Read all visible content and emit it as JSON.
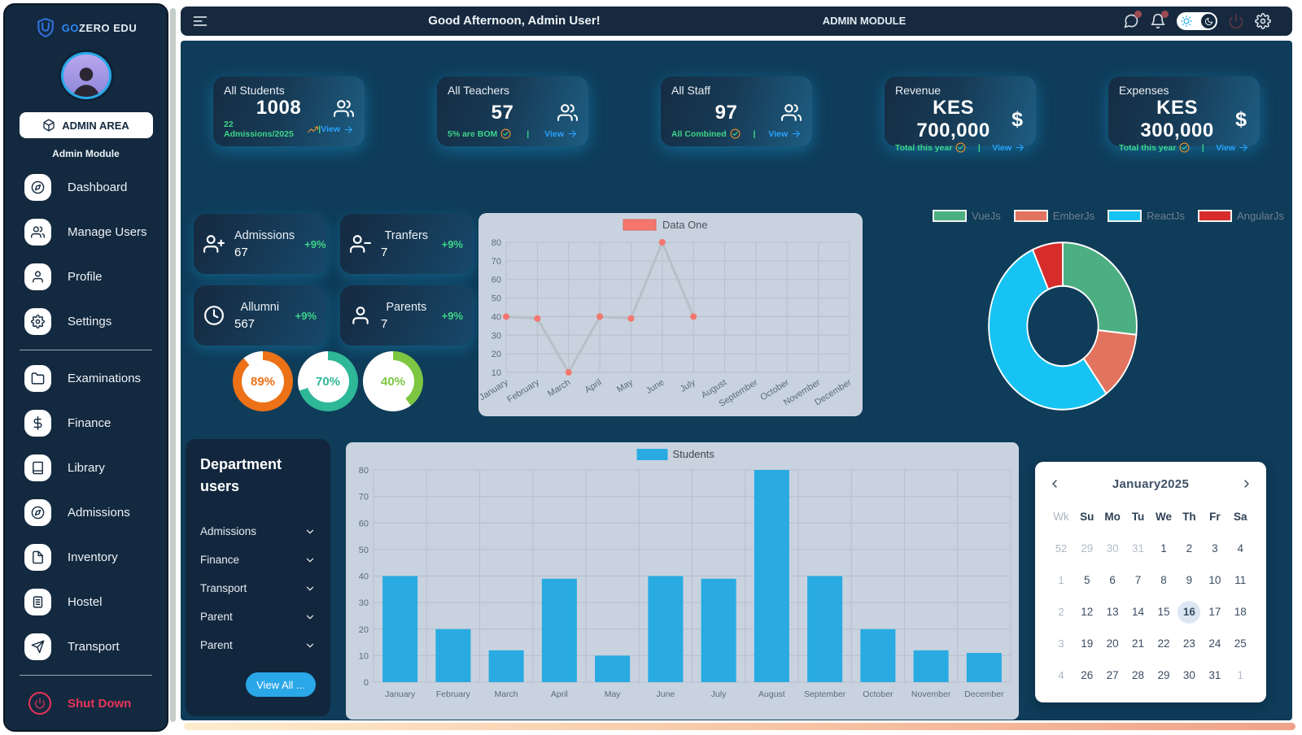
{
  "brand": {
    "go": "GO",
    "rest": "ZERO EDU",
    "logo_icon": "shield-u-icon"
  },
  "sidebar": {
    "admin_area_label": "ADMIN AREA",
    "admin_area_icon": "box-icon",
    "section_label": "Admin Module",
    "items": [
      {
        "label": "Dashboard",
        "icon": "compass"
      },
      {
        "label": "Manage Users",
        "icon": "users"
      },
      {
        "label": "Profile",
        "icon": "user"
      },
      {
        "label": "Settings",
        "icon": "gear"
      },
      {
        "label": "Examinations",
        "icon": "folder"
      },
      {
        "label": "Finance",
        "icon": "dollar"
      },
      {
        "label": "Library",
        "icon": "book"
      },
      {
        "label": "Admissions",
        "icon": "compass"
      },
      {
        "label": "Inventory",
        "icon": "file"
      },
      {
        "label": "Hostel",
        "icon": "building"
      },
      {
        "label": "Transport",
        "icon": "send"
      }
    ],
    "dividers_after": [
      3,
      10
    ],
    "shutdown_label": "Shut Down",
    "shutdown_icon": "power"
  },
  "topbar": {
    "menu_icon": "menu",
    "greeting": "Good Afternoon, Admin User!",
    "module_label": "ADMIN MODULE",
    "icons": [
      {
        "name": "chat",
        "badge": true
      },
      {
        "name": "bell",
        "badge": true
      },
      {
        "name": "theme-toggle",
        "badge": false
      },
      {
        "name": "power",
        "badge": false,
        "dim": true
      },
      {
        "name": "gear",
        "badge": false
      }
    ]
  },
  "ui": {
    "footer_divider": "|"
  },
  "stat_cards": [
    {
      "title": "All Students",
      "value": "1008",
      "icon": "users",
      "subtext": "22 Admissions/2025",
      "sub_icon": "trend-up",
      "link_label": "View"
    },
    {
      "title": "All Teachers",
      "value": "57",
      "icon": "users",
      "subtext": "5% are BOM",
      "sub_icon": "check-badge",
      "link_label": "View"
    },
    {
      "title": "All Staff",
      "value": "97",
      "icon": "users",
      "subtext": "All Combined",
      "sub_icon": "check-badge",
      "link_label": "View"
    },
    {
      "title": "Revenue",
      "value": "KES 700,000",
      "icon": "dollar-char",
      "icon_char": "$",
      "subtext": "Total this year",
      "sub_icon": "check-badge",
      "link_label": "View"
    },
    {
      "title": "Expenses",
      "value": "KES 300,000",
      "icon": "dollar-char",
      "icon_char": "$",
      "subtext": "Total this year",
      "sub_icon": "check-badge",
      "link_label": "View"
    }
  ],
  "mini_cards": [
    {
      "label": "Admissions",
      "value": "67",
      "delta": "+9%",
      "icon": "user-plus"
    },
    {
      "label": "Tranfers",
      "value": "7",
      "delta": "+9%",
      "icon": "user-minus"
    },
    {
      "label": "Allumni",
      "value": "567",
      "delta": "+9%",
      "icon": "clock"
    },
    {
      "label": "Parents",
      "value": "7",
      "delta": "+9%",
      "icon": "user"
    }
  ],
  "progress_rings": [
    {
      "label": "89%",
      "percent": 89,
      "color": "#ed7117"
    },
    {
      "label": "70%",
      "percent": 70,
      "color": "#2eb897"
    },
    {
      "label": "40%",
      "percent": 40,
      "color": "#7dc642"
    }
  ],
  "chart_data": [
    {
      "id": "monthly-line",
      "type": "line",
      "title": "",
      "categories": [
        "January",
        "February",
        "March",
        "April",
        "May",
        "June",
        "July",
        "August",
        "September",
        "October",
        "November",
        "December"
      ],
      "series": [
        {
          "name": "Data One",
          "color": "#f4766d",
          "values": [
            40,
            39,
            10,
            40,
            39,
            80,
            40,
            null,
            null,
            null,
            null,
            null
          ]
        }
      ],
      "line_color": "#b9bfc7",
      "ylim": [
        10,
        80
      ],
      "ytick_step": 10,
      "grid": true,
      "legend_position": "top",
      "background": "#c9d3df"
    },
    {
      "id": "frameworks-donut",
      "type": "pie",
      "labels": [
        "VueJs",
        "EmberJs",
        "ReactJs",
        "AngularJs"
      ],
      "values": [
        40,
        20,
        80,
        10
      ],
      "colors": [
        "#4caf82",
        "#e2735e",
        "#17c3f3",
        "#d62c2c"
      ],
      "donut": true,
      "legend_position": "top"
    },
    {
      "id": "students-bar",
      "type": "bar",
      "title": "",
      "categories": [
        "January",
        "February",
        "March",
        "April",
        "May",
        "June",
        "July",
        "August",
        "September",
        "October",
        "November",
        "December"
      ],
      "series": [
        {
          "name": "Students",
          "color": "#29abe2",
          "values": [
            40,
            20,
            12,
            39,
            10,
            40,
            39,
            80,
            40,
            20,
            12,
            11
          ]
        }
      ],
      "ylim": [
        0,
        80
      ],
      "ytick_step": 10,
      "grid": true,
      "legend_position": "top",
      "background": "#c9d3df"
    }
  ],
  "department_users": {
    "title": "Department users",
    "items": [
      {
        "label": "Admissions"
      },
      {
        "label": "Finance"
      },
      {
        "label": "Transport"
      },
      {
        "label": "Parent"
      },
      {
        "label": "Parent"
      }
    ],
    "view_all_label": "View All ..."
  },
  "calendar": {
    "title": "January2025",
    "day_headers": [
      "Wk",
      "Su",
      "Mo",
      "Tu",
      "We",
      "Th",
      "Fr",
      "Sa"
    ],
    "weeks": [
      {
        "wk": "52",
        "days": [
          {
            "d": "29",
            "muted": true
          },
          {
            "d": "30",
            "muted": true
          },
          {
            "d": "31",
            "muted": true
          },
          {
            "d": "1"
          },
          {
            "d": "2"
          },
          {
            "d": "3"
          },
          {
            "d": "4"
          }
        ]
      },
      {
        "wk": "1",
        "days": [
          {
            "d": "5"
          },
          {
            "d": "6"
          },
          {
            "d": "7"
          },
          {
            "d": "8"
          },
          {
            "d": "9"
          },
          {
            "d": "10"
          },
          {
            "d": "11"
          }
        ]
      },
      {
        "wk": "2",
        "days": [
          {
            "d": "12"
          },
          {
            "d": "13"
          },
          {
            "d": "14"
          },
          {
            "d": "15"
          },
          {
            "d": "16",
            "selected": true
          },
          {
            "d": "17"
          },
          {
            "d": "18"
          }
        ]
      },
      {
        "wk": "3",
        "days": [
          {
            "d": "19"
          },
          {
            "d": "20"
          },
          {
            "d": "21"
          },
          {
            "d": "22"
          },
          {
            "d": "23"
          },
          {
            "d": "24"
          },
          {
            "d": "25"
          }
        ]
      },
      {
        "wk": "4",
        "days": [
          {
            "d": "26"
          },
          {
            "d": "27"
          },
          {
            "d": "28"
          },
          {
            "d": "29"
          },
          {
            "d": "30"
          },
          {
            "d": "31"
          },
          {
            "d": "1",
            "muted": true
          }
        ]
      }
    ]
  }
}
